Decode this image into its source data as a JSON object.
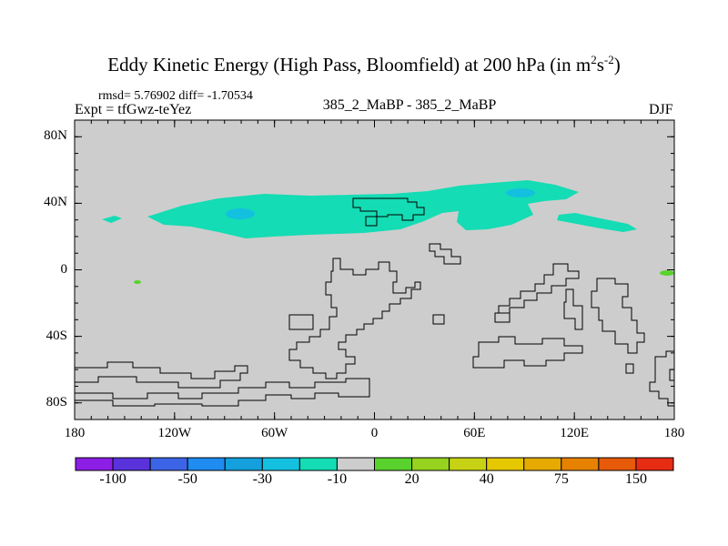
{
  "title": {
    "main": "Eddy Kinetic Energy (High Pass, Bloomfield) at 200 hPa (in m",
    "sup1": "2",
    "mid": "s",
    "sup2": "-2",
    "close": ")"
  },
  "stats": {
    "rmsd_line": "rmsd= 5.76902 diff= -1.70534",
    "expt_line": "Expt = tfGwz-teYez",
    "center_label": "385_2_MaBP - 385_2_MaBP",
    "season": "DJF"
  },
  "chart_data": {
    "type": "heatmap",
    "projection": "cylindrical equidistant",
    "title": "Eddy Kinetic Energy (High Pass, Bloomfield) at 200 hPa (in m2s-2)",
    "lat_range": [
      -90,
      90
    ],
    "lon_range": [
      -180,
      180
    ],
    "lat_ticks": [
      {
        "value": 80,
        "label": "80N"
      },
      {
        "value": 40,
        "label": "40N"
      },
      {
        "value": 0,
        "label": "0"
      },
      {
        "value": -40,
        "label": "40S"
      },
      {
        "value": -80,
        "label": "80S"
      }
    ],
    "lon_ticks": [
      {
        "value": -180,
        "label": "180"
      },
      {
        "value": -120,
        "label": "120W"
      },
      {
        "value": -60,
        "label": "60W"
      },
      {
        "value": 0,
        "label": "0"
      },
      {
        "value": 60,
        "label": "60E"
      },
      {
        "value": 120,
        "label": "120E"
      },
      {
        "value": 180,
        "label": "180"
      }
    ],
    "background_category": "-10 to 10 (grey)",
    "colorbar": {
      "colors": [
        "#8c1ee6",
        "#5a32dc",
        "#3c64e6",
        "#1e8cf0",
        "#14a0dc",
        "#14c0e0",
        "#14dcb4",
        "#cdcdcd",
        "#5ad22d",
        "#96d21e",
        "#c8d214",
        "#e6c800",
        "#e6aa00",
        "#e68200",
        "#e65a0a",
        "#e62d14"
      ],
      "labels": [
        {
          "text": "-100",
          "boundary": 2
        },
        {
          "text": "-50",
          "boundary": 4
        },
        {
          "text": "-30",
          "boundary": 6
        },
        {
          "text": "-10",
          "boundary": 8
        },
        {
          "text": "20",
          "boundary": 10
        },
        {
          "text": "40",
          "boundary": 12
        },
        {
          "text": "75",
          "boundary": 14
        },
        {
          "text": "150",
          "boundary": 16
        }
      ]
    },
    "regions": [
      {
        "name": "NH storm-track band",
        "category": "-30 to -10",
        "color": "#14dcb4",
        "lon_range": [
          -140,
          140
        ],
        "lat_range": [
          25,
          50
        ]
      },
      {
        "name": "Pacific minimum",
        "category": "-50 to -30",
        "color": "#14c0e0",
        "center": [
          -85,
          33
        ]
      },
      {
        "name": "Asian minimum",
        "category": "-50 to -30",
        "color": "#14c0e0",
        "center": [
          90,
          45
        ]
      },
      {
        "name": "eastern Pacific positive",
        "category": "10 to 20",
        "color": "#5ad22d",
        "center": [
          178,
          0
        ]
      },
      {
        "name": "tropical Pacific speck",
        "category": "10 to 20",
        "color": "#5ad22d",
        "center": [
          -143,
          -7
        ]
      }
    ]
  }
}
